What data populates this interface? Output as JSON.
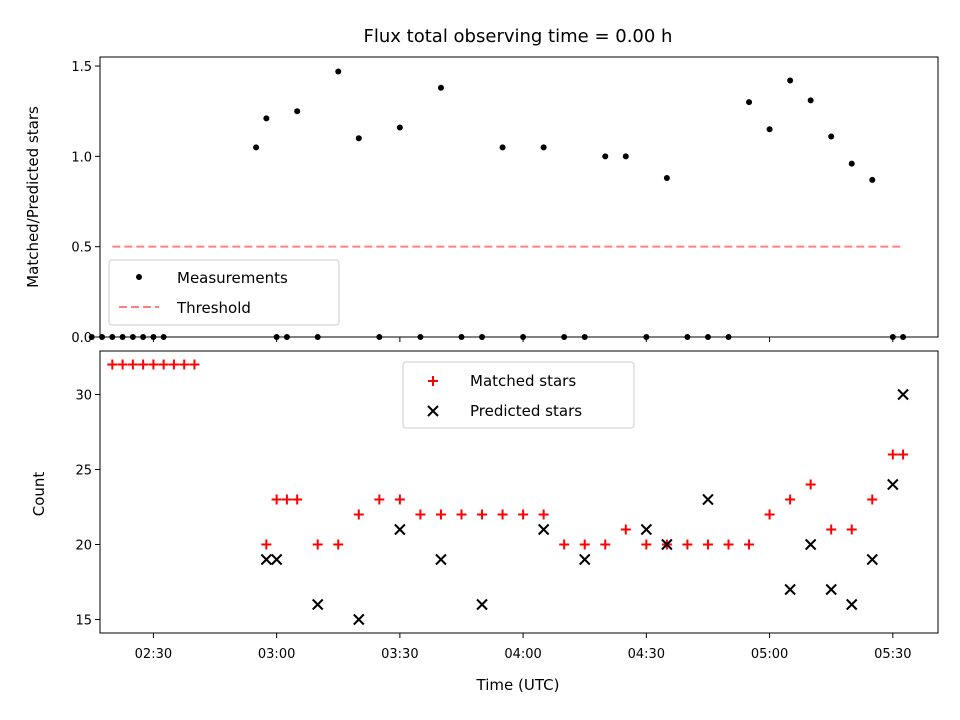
{
  "chart_data": [
    {
      "type": "scatter",
      "title": "Flux total observing time = 0.00 h",
      "xlabel": "",
      "ylabel": "Matched/Predicted stars",
      "xlim": [
        "02:17",
        "05:41"
      ],
      "ylim": [
        0,
        1.55
      ],
      "yticks": [
        0.0,
        0.5,
        1.0,
        1.5
      ],
      "ytick_labels": [
        "0.0",
        "0.5",
        "1.0",
        "1.5"
      ],
      "xticks": [
        "02:30",
        "03:00",
        "03:30",
        "04:00",
        "04:30",
        "05:00",
        "05:30"
      ],
      "xtick_labels": [
        "",
        "",
        "",
        "",
        "",
        "",
        ""
      ],
      "legend": {
        "placement": "lower-left",
        "entries": [
          "Measurements",
          "Threshold"
        ]
      },
      "colors": {
        "measurements": "#000000",
        "threshold": "#ff7f7f"
      },
      "series": [
        {
          "name": "Measurements",
          "x": [
            "02:15",
            "02:17.5",
            "02:20",
            "02:22.5",
            "02:25",
            "02:27.5",
            "02:30",
            "02:32.5",
            "02:55",
            "02:57.5",
            "03:00",
            "03:02.5",
            "03:05",
            "03:10",
            "03:15",
            "03:20",
            "03:25",
            "03:30",
            "03:35",
            "03:40",
            "03:45",
            "03:50",
            "03:55",
            "04:00",
            "04:05",
            "04:10",
            "04:15",
            "04:20",
            "04:25",
            "04:30",
            "04:35",
            "04:40",
            "04:45",
            "04:50",
            "04:55",
            "05:00",
            "05:05",
            "05:10",
            "05:15",
            "05:20",
            "05:25",
            "05:30",
            "05:32.5"
          ],
          "y": [
            0,
            0,
            0,
            0,
            0,
            0,
            0,
            0,
            1.05,
            1.21,
            0,
            0,
            1.25,
            0,
            1.47,
            1.1,
            0,
            1.16,
            0,
            1.38,
            0,
            0,
            1.05,
            0,
            1.05,
            0,
            0,
            1.0,
            1.0,
            0,
            0.88,
            0,
            0,
            0,
            1.3,
            1.15,
            1.42,
            1.31,
            1.11,
            0.96,
            0.87,
            0,
            0
          ]
        },
        {
          "name": "Threshold",
          "type": "line",
          "x": [
            "02:20",
            "05:32.5"
          ],
          "y": [
            0.5,
            0.5
          ]
        }
      ]
    },
    {
      "type": "scatter",
      "title": "",
      "xlabel": "Time (UTC)",
      "ylabel": "Count",
      "xlim": [
        "02:17",
        "05:41"
      ],
      "ylim": [
        14.1,
        32.9
      ],
      "yticks": [
        15,
        20,
        25,
        30
      ],
      "ytick_labels": [
        "15",
        "20",
        "25",
        "30"
      ],
      "xticks": [
        "02:30",
        "03:00",
        "03:30",
        "04:00",
        "04:30",
        "05:00",
        "05:30"
      ],
      "xtick_labels": [
        "02:30",
        "03:00",
        "03:30",
        "04:00",
        "04:30",
        "05:00",
        "05:30"
      ],
      "legend": {
        "placement": "top-center",
        "entries": [
          "Matched stars",
          "Predicted stars"
        ]
      },
      "colors": {
        "matched": "#ff0000",
        "predicted": "#000000"
      },
      "series": [
        {
          "name": "Matched stars",
          "marker": "plus",
          "x": [
            "02:20",
            "02:22.5",
            "02:25",
            "02:27.5",
            "02:30",
            "02:32.5",
            "02:35",
            "02:37.5",
            "02:40",
            "02:57.5",
            "03:00",
            "03:02.5",
            "03:05",
            "03:10",
            "03:15",
            "03:20",
            "03:25",
            "03:30",
            "03:35",
            "03:40",
            "03:45",
            "03:50",
            "03:55",
            "04:00",
            "04:05",
            "04:10",
            "04:15",
            "04:20",
            "04:25",
            "04:30",
            "04:35",
            "04:40",
            "04:45",
            "04:50",
            "04:55",
            "05:00",
            "05:05",
            "05:10",
            "05:15",
            "05:20",
            "05:25",
            "05:30",
            "05:32.5"
          ],
          "y": [
            32,
            32,
            32,
            32,
            32,
            32,
            32,
            32,
            32,
            20,
            23,
            23,
            23,
            20,
            20,
            22,
            23,
            23,
            22,
            22,
            22,
            22,
            22,
            22,
            22,
            20,
            20,
            20,
            21,
            20,
            20,
            20,
            20,
            20,
            20,
            22,
            23,
            24,
            21,
            21,
            23,
            26,
            26
          ]
        },
        {
          "name": "Predicted stars",
          "marker": "x",
          "x": [
            "02:57.5",
            "03:00",
            "03:10",
            "03:20",
            "03:30",
            "03:40",
            "03:50",
            "04:05",
            "04:15",
            "04:30",
            "04:35",
            "04:45",
            "05:05",
            "05:10",
            "05:15",
            "05:20",
            "05:25",
            "05:30",
            "05:32.5"
          ],
          "y": [
            19,
            19,
            16,
            15,
            21,
            19,
            16,
            21,
            19,
            21,
            20,
            23,
            17,
            20,
            17,
            16,
            19,
            24,
            30
          ]
        }
      ]
    }
  ]
}
